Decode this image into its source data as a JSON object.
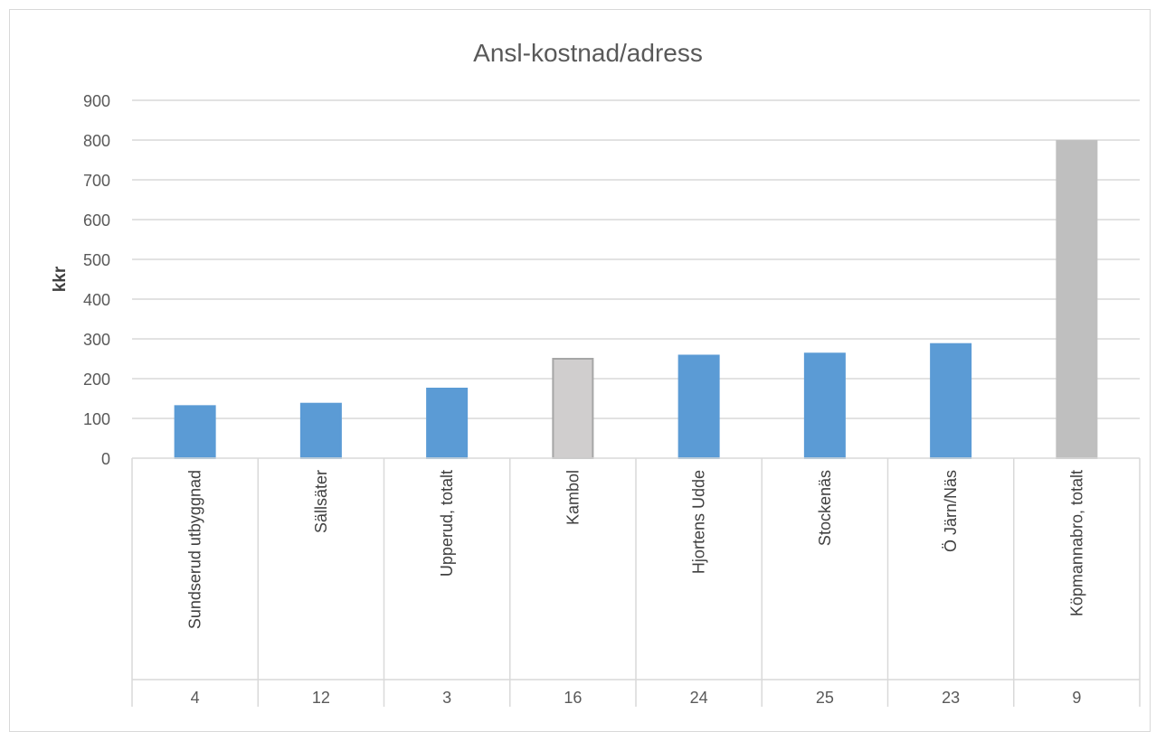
{
  "chart_data": {
    "type": "bar",
    "title": "Ansl-kostnad/adress",
    "xlabel": "",
    "ylabel": "kkr",
    "ylim": [
      0,
      900
    ],
    "yticks": [
      0,
      100,
      200,
      300,
      400,
      500,
      600,
      700,
      800,
      900
    ],
    "grid": true,
    "legend": "none",
    "categories": [
      "Sundserud utbyggnad",
      "Sällsäter",
      "Upperud, totalt",
      "Kambol",
      "Hjortens Udde",
      "Stockenäs",
      "Ö Järn/Näs",
      "Köpmannabro, totalt"
    ],
    "secondary_categories": [
      "4",
      "12",
      "3",
      "16",
      "24",
      "25",
      "23",
      "9"
    ],
    "values": [
      131,
      137,
      175,
      250,
      258,
      263,
      287,
      798
    ],
    "bar_colors": [
      "#5b9bd5",
      "#5b9bd5",
      "#5b9bd5",
      "#d0cece",
      "#5b9bd5",
      "#5b9bd5",
      "#5b9bd5",
      "#bfbfbf"
    ],
    "bar_border_colors": [
      "#5b9bd5",
      "#5b9bd5",
      "#5b9bd5",
      "#a6a6a6",
      "#5b9bd5",
      "#5b9bd5",
      "#5b9bd5",
      "#bfbfbf"
    ]
  }
}
